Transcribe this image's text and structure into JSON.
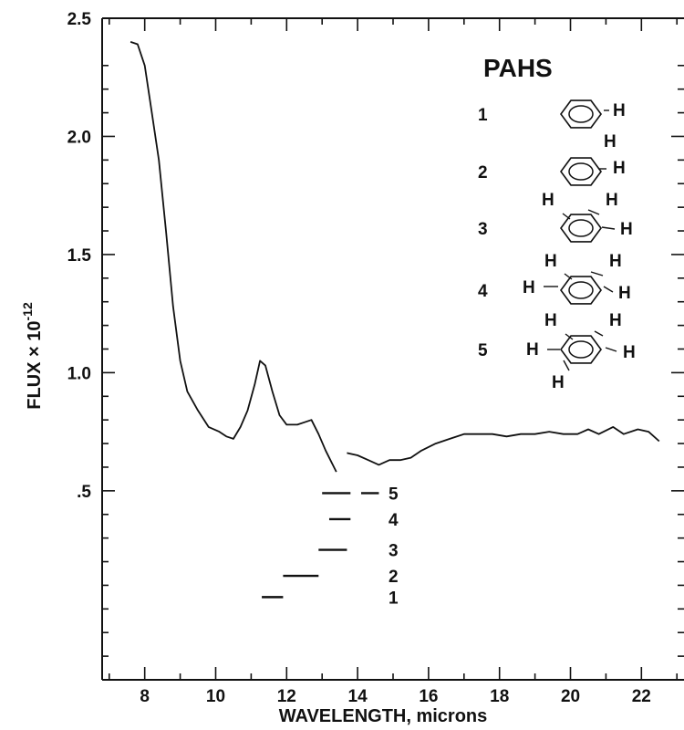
{
  "chart_data": {
    "type": "line",
    "title": "",
    "xlabel": "WAVELENGTH, microns",
    "ylabel": "FLUX × 10",
    "ylabel_exponent": "-12",
    "xlim": [
      6.8,
      23.2
    ],
    "ylim": [
      -0.3,
      2.5
    ],
    "x_ticks": [
      8,
      10,
      12,
      14,
      16,
      18,
      20,
      22
    ],
    "x_tick_labels": [
      "8",
      "10",
      "12",
      "14",
      "16",
      "18",
      "20",
      "22"
    ],
    "y_ticks": [
      0.5,
      1.0,
      1.5,
      2.0,
      2.5
    ],
    "y_tick_labels": [
      ".5",
      "1.0",
      "1.5",
      "2.0",
      "2.5"
    ],
    "grid": false,
    "series": [
      {
        "segments": [
          [
            [
              7.6,
              2.4
            ],
            [
              7.8,
              2.39
            ],
            [
              8.0,
              2.3
            ],
            [
              8.2,
              2.1
            ],
            [
              8.4,
              1.9
            ],
            [
              8.6,
              1.6
            ],
            [
              8.8,
              1.28
            ],
            [
              9.0,
              1.05
            ],
            [
              9.2,
              0.92
            ],
            [
              9.5,
              0.84
            ],
            [
              9.8,
              0.77
            ],
            [
              10.1,
              0.75
            ],
            [
              10.3,
              0.73
            ],
            [
              10.5,
              0.72
            ],
            [
              10.7,
              0.77
            ],
            [
              10.9,
              0.84
            ],
            [
              11.1,
              0.95
            ],
            [
              11.25,
              1.05
            ],
            [
              11.4,
              1.03
            ],
            [
              11.6,
              0.92
            ],
            [
              11.8,
              0.82
            ],
            [
              12.0,
              0.78
            ],
            [
              12.3,
              0.78
            ],
            [
              12.5,
              0.79
            ],
            [
              12.7,
              0.8
            ],
            [
              12.9,
              0.74
            ],
            [
              13.1,
              0.67
            ],
            [
              13.3,
              0.61
            ],
            [
              13.4,
              0.58
            ]
          ],
          [
            [
              13.7,
              0.66
            ],
            [
              14.0,
              0.65
            ],
            [
              14.3,
              0.63
            ],
            [
              14.6,
              0.61
            ],
            [
              14.9,
              0.63
            ],
            [
              15.2,
              0.63
            ],
            [
              15.5,
              0.64
            ],
            [
              15.8,
              0.67
            ],
            [
              16.2,
              0.7
            ],
            [
              16.6,
              0.72
            ],
            [
              17.0,
              0.74
            ],
            [
              17.4,
              0.74
            ],
            [
              17.8,
              0.74
            ],
            [
              18.2,
              0.73
            ],
            [
              18.6,
              0.74
            ],
            [
              19.0,
              0.74
            ],
            [
              19.4,
              0.75
            ],
            [
              19.8,
              0.74
            ],
            [
              20.2,
              0.74
            ],
            [
              20.5,
              0.76
            ],
            [
              20.8,
              0.74
            ],
            [
              21.2,
              0.77
            ],
            [
              21.5,
              0.74
            ],
            [
              21.9,
              0.76
            ],
            [
              22.2,
              0.75
            ],
            [
              22.5,
              0.71
            ]
          ]
        ]
      }
    ],
    "pah_bands": [
      {
        "label": "1",
        "x_start": 11.3,
        "x_end": 11.9,
        "y": 0.05
      },
      {
        "label": "2",
        "x_start": 11.9,
        "x_end": 12.9,
        "y": 0.14
      },
      {
        "label": "3",
        "x_start": 12.9,
        "x_end": 13.7,
        "y": 0.25
      },
      {
        "label": "4",
        "x_start": 13.2,
        "x_end": 13.8,
        "y": 0.38
      },
      {
        "label": "5",
        "x_start": 13.0,
        "x_end": 13.8,
        "y": 0.49
      },
      {
        "label": "",
        "x_start": 14.1,
        "x_end": 14.6,
        "y": 0.49
      }
    ],
    "legend": {
      "title": "PAHS",
      "entries": [
        {
          "label": "1",
          "h_atoms": [
            "H"
          ]
        },
        {
          "label": "2",
          "h_atoms": [
            "H",
            "H"
          ]
        },
        {
          "label": "3",
          "h_atoms": [
            "H",
            "H",
            "H"
          ]
        },
        {
          "label": "4",
          "h_atoms": [
            "H",
            "H",
            "H",
            "H"
          ]
        },
        {
          "label": "5",
          "h_atoms": [
            "H",
            "H",
            "H",
            "H",
            "H"
          ]
        }
      ],
      "position": "top-right"
    }
  }
}
